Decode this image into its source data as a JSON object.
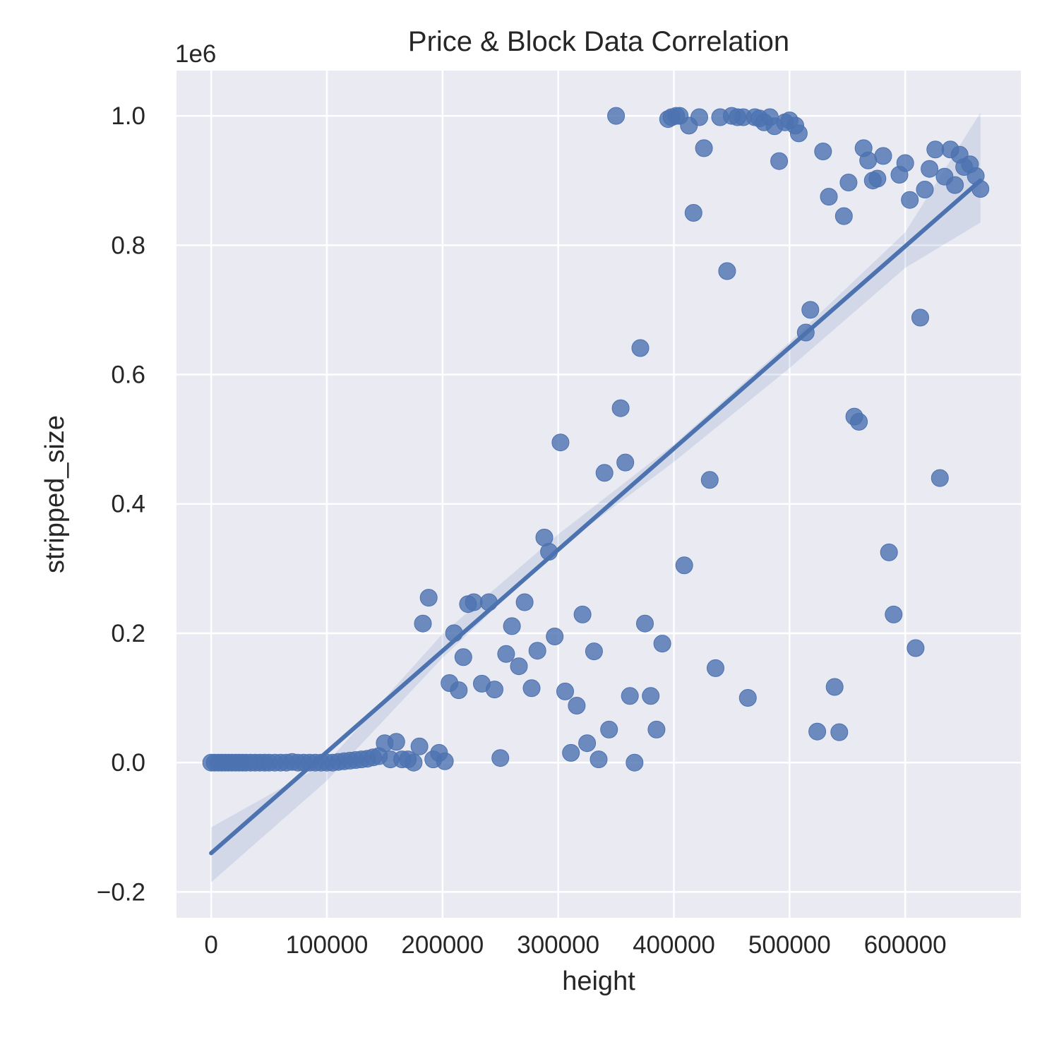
{
  "chart_data": {
    "type": "scatter",
    "title": "Price & Block Data Correlation",
    "xlabel": "height",
    "ylabel": "stripped_size",
    "y_offset_text": "1e6",
    "xlim": [
      -30000,
      700000
    ],
    "ylim": [
      -240000,
      1070000
    ],
    "x_ticks": [
      0,
      100000,
      200000,
      300000,
      400000,
      500000,
      600000
    ],
    "x_tick_labels": [
      "0",
      "100000",
      "200000",
      "300000",
      "400000",
      "500000",
      "600000"
    ],
    "y_ticks": [
      -200000,
      0,
      200000,
      400000,
      600000,
      800000,
      1000000
    ],
    "y_tick_labels": [
      "−0.2",
      "0.0",
      "0.2",
      "0.4",
      "0.6",
      "0.8",
      "1.0"
    ],
    "grid": true,
    "colors": {
      "background": "#eaeaf2",
      "grid": "#ffffff",
      "points": "#4c72b0",
      "line": "#4c72b0",
      "band": "#4c72b0"
    },
    "series": [
      {
        "points": [
          [
            0,
            0
          ],
          [
            3000,
            0
          ],
          [
            6000,
            0
          ],
          [
            9000,
            0
          ],
          [
            12000,
            0
          ],
          [
            15000,
            0
          ],
          [
            18000,
            0
          ],
          [
            21000,
            0
          ],
          [
            24000,
            0
          ],
          [
            27000,
            0
          ],
          [
            30000,
            0
          ],
          [
            34000,
            0
          ],
          [
            38000,
            0
          ],
          [
            42000,
            0
          ],
          [
            46000,
            0
          ],
          [
            50000,
            0
          ],
          [
            55000,
            0
          ],
          [
            60000,
            0
          ],
          [
            65000,
            0
          ],
          [
            70000,
            1000
          ],
          [
            75000,
            0
          ],
          [
            80000,
            0
          ],
          [
            85000,
            0
          ],
          [
            90000,
            0
          ],
          [
            95000,
            0
          ],
          [
            100000,
            0
          ],
          [
            105000,
            0
          ],
          [
            110000,
            1000
          ],
          [
            115000,
            2000
          ],
          [
            120000,
            3000
          ],
          [
            125000,
            4000
          ],
          [
            130000,
            5000
          ],
          [
            135000,
            6000
          ],
          [
            140000,
            8000
          ],
          [
            145000,
            10000
          ],
          [
            150000,
            30000
          ],
          [
            155000,
            5000
          ],
          [
            160000,
            32000
          ],
          [
            165000,
            5000
          ],
          [
            170000,
            5000
          ],
          [
            175000,
            0
          ],
          [
            180000,
            25000
          ],
          [
            183000,
            215000
          ],
          [
            188000,
            255000
          ],
          [
            192000,
            5000
          ],
          [
            197000,
            15000
          ],
          [
            202000,
            2000
          ],
          [
            206000,
            123000
          ],
          [
            210000,
            200000
          ],
          [
            214000,
            112000
          ],
          [
            218000,
            163000
          ],
          [
            222000,
            245000
          ],
          [
            227000,
            248000
          ],
          [
            234000,
            122000
          ],
          [
            240000,
            248000
          ],
          [
            245000,
            113000
          ],
          [
            250000,
            7000
          ],
          [
            255000,
            168000
          ],
          [
            260000,
            211000
          ],
          [
            266000,
            149000
          ],
          [
            271000,
            248000
          ],
          [
            277000,
            115000
          ],
          [
            282000,
            173000
          ],
          [
            288000,
            348000
          ],
          [
            292000,
            326000
          ],
          [
            297000,
            195000
          ],
          [
            302000,
            495000
          ],
          [
            306000,
            110000
          ],
          [
            311000,
            15000
          ],
          [
            316000,
            88000
          ],
          [
            321000,
            229000
          ],
          [
            325000,
            30000
          ],
          [
            331000,
            172000
          ],
          [
            335000,
            5000
          ],
          [
            340000,
            448000
          ],
          [
            344000,
            51000
          ],
          [
            350000,
            1000000
          ],
          [
            354000,
            548000
          ],
          [
            358000,
            464000
          ],
          [
            362000,
            103000
          ],
          [
            366000,
            0
          ],
          [
            371000,
            641000
          ],
          [
            375000,
            215000
          ],
          [
            380000,
            103000
          ],
          [
            385000,
            51000
          ],
          [
            390000,
            184000
          ],
          [
            395000,
            995000
          ],
          [
            398000,
            998000
          ],
          [
            402000,
            1000000
          ],
          [
            405000,
            1000000
          ],
          [
            409000,
            305000
          ],
          [
            413000,
            985000
          ],
          [
            417000,
            850000
          ],
          [
            422000,
            998000
          ],
          [
            426000,
            950000
          ],
          [
            431000,
            437000
          ],
          [
            436000,
            146000
          ],
          [
            440000,
            998000
          ],
          [
            446000,
            760000
          ],
          [
            450000,
            1000000
          ],
          [
            455000,
            998000
          ],
          [
            460000,
            998000
          ],
          [
            464000,
            100000
          ],
          [
            470000,
            998000
          ],
          [
            474000,
            996000
          ],
          [
            478000,
            990000
          ],
          [
            483000,
            998000
          ],
          [
            487000,
            984000
          ],
          [
            491000,
            930000
          ],
          [
            496000,
            990000
          ],
          [
            500000,
            993000
          ],
          [
            505000,
            985000
          ],
          [
            508000,
            973000
          ],
          [
            514000,
            665000
          ],
          [
            518000,
            700000
          ],
          [
            524000,
            48000
          ],
          [
            529000,
            945000
          ],
          [
            534000,
            875000
          ],
          [
            539000,
            117000
          ],
          [
            543000,
            47000
          ],
          [
            547000,
            845000
          ],
          [
            551000,
            897000
          ],
          [
            556000,
            535000
          ],
          [
            560000,
            527000
          ],
          [
            564000,
            950000
          ],
          [
            568000,
            931000
          ],
          [
            572000,
            900000
          ],
          [
            576000,
            903000
          ],
          [
            581000,
            938000
          ],
          [
            586000,
            325000
          ],
          [
            590000,
            229000
          ],
          [
            595000,
            909000
          ],
          [
            600000,
            927000
          ],
          [
            604000,
            870000
          ],
          [
            609000,
            177000
          ],
          [
            613000,
            688000
          ],
          [
            617000,
            886000
          ],
          [
            621000,
            918000
          ],
          [
            626000,
            948000
          ],
          [
            630000,
            440000
          ],
          [
            634000,
            906000
          ],
          [
            639000,
            948000
          ],
          [
            643000,
            893000
          ],
          [
            647000,
            940000
          ],
          [
            651000,
            921000
          ],
          [
            656000,
            925000
          ],
          [
            661000,
            907000
          ],
          [
            665000,
            887000
          ]
        ]
      }
    ],
    "regression": {
      "x0": 0,
      "y0": -140000,
      "x1": 665000,
      "y1": 900000
    },
    "confidence_band": {
      "x": [
        0,
        100000,
        200000,
        300000,
        400000,
        500000,
        600000,
        665000
      ],
      "lower": [
        -185000,
        -28000,
        162000,
        331000,
        465000,
        610000,
        765000,
        835000
      ],
      "upper": [
        -100000,
        0,
        199000,
        353000,
        492000,
        650000,
        820000,
        1005000
      ]
    }
  }
}
